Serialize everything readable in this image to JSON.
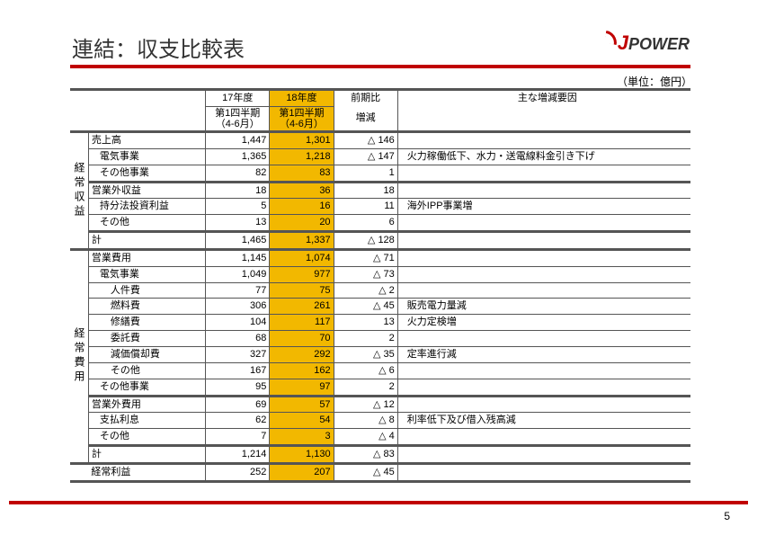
{
  "title": "連結：収支比較表",
  "brand": {
    "j": "J",
    "rest": "POWER"
  },
  "unit": "（単位：億円）",
  "page_number": "5",
  "headers": {
    "fy17": "17年度",
    "fy18": "18年度",
    "prev": "前期比",
    "reason": "主な増減要因",
    "q1_17": "第1四半期（4-6月）",
    "q1_18": "第1四半期（4-6月）",
    "diff": "増減"
  },
  "sections": {
    "revenue_label": "経常収益",
    "expense_label": "経常費用"
  },
  "rows": [
    {
      "label": "売上高",
      "fy17": "1,447",
      "fy18": "1,301",
      "diff": "△ 146",
      "reason": ""
    },
    {
      "label": "電気事業",
      "indent": 1,
      "fy17": "1,365",
      "fy18": "1,218",
      "diff": "△ 147",
      "reason": "火力稼働低下、水力・送電線料金引き下げ"
    },
    {
      "label": "その他事業",
      "indent": 1,
      "fy17": "82",
      "fy18": "83",
      "diff": "1",
      "reason": ""
    },
    {
      "label": "営業外収益",
      "fy17": "18",
      "fy18": "36",
      "diff": "18",
      "reason": ""
    },
    {
      "label": "持分法投資利益",
      "indent": 1,
      "fy17": "5",
      "fy18": "16",
      "diff": "11",
      "reason": "海外IPP事業増"
    },
    {
      "label": "その他",
      "indent": 1,
      "fy17": "13",
      "fy18": "20",
      "diff": "6",
      "reason": ""
    },
    {
      "label": "計",
      "fy17": "1,465",
      "fy18": "1,337",
      "diff": "△ 128",
      "reason": ""
    }
  ],
  "exp_rows": [
    {
      "label": "営業費用",
      "fy17": "1,145",
      "fy18": "1,074",
      "diff": "△ 71",
      "reason": ""
    },
    {
      "label": "電気事業",
      "indent": 1,
      "fy17": "1,049",
      "fy18": "977",
      "diff": "△ 73",
      "reason": ""
    },
    {
      "label": "人件費",
      "indent": 2,
      "fy17": "77",
      "fy18": "75",
      "diff": "△ 2",
      "reason": ""
    },
    {
      "label": "燃料費",
      "indent": 2,
      "fy17": "306",
      "fy18": "261",
      "diff": "△ 45",
      "reason": "販売電力量減"
    },
    {
      "label": "修繕費",
      "indent": 2,
      "fy17": "104",
      "fy18": "117",
      "diff": "13",
      "reason": "火力定検増"
    },
    {
      "label": "委託費",
      "indent": 2,
      "fy17": "68",
      "fy18": "70",
      "diff": "2",
      "reason": ""
    },
    {
      "label": "減価償却費",
      "indent": 2,
      "fy17": "327",
      "fy18": "292",
      "diff": "△ 35",
      "reason": "定率進行減"
    },
    {
      "label": "その他",
      "indent": 2,
      "fy17": "167",
      "fy18": "162",
      "diff": "△ 6",
      "reason": ""
    },
    {
      "label": "その他事業",
      "indent": 1,
      "fy17": "95",
      "fy18": "97",
      "diff": "2",
      "reason": ""
    },
    {
      "label": "営業外費用",
      "fy17": "69",
      "fy18": "57",
      "diff": "△ 12",
      "reason": ""
    },
    {
      "label": "支払利息",
      "indent": 1,
      "fy17": "62",
      "fy18": "54",
      "diff": "△ 8",
      "reason": "利率低下及び借入残高減"
    },
    {
      "label": "その他",
      "indent": 1,
      "fy17": "7",
      "fy18": "3",
      "diff": "△ 4",
      "reason": ""
    },
    {
      "label": "計",
      "fy17": "1,214",
      "fy18": "1,130",
      "diff": "△ 83",
      "reason": ""
    }
  ],
  "ordinary": {
    "label": "経常利益",
    "fy17": "252",
    "fy18": "207",
    "diff": "△ 45",
    "reason": ""
  }
}
